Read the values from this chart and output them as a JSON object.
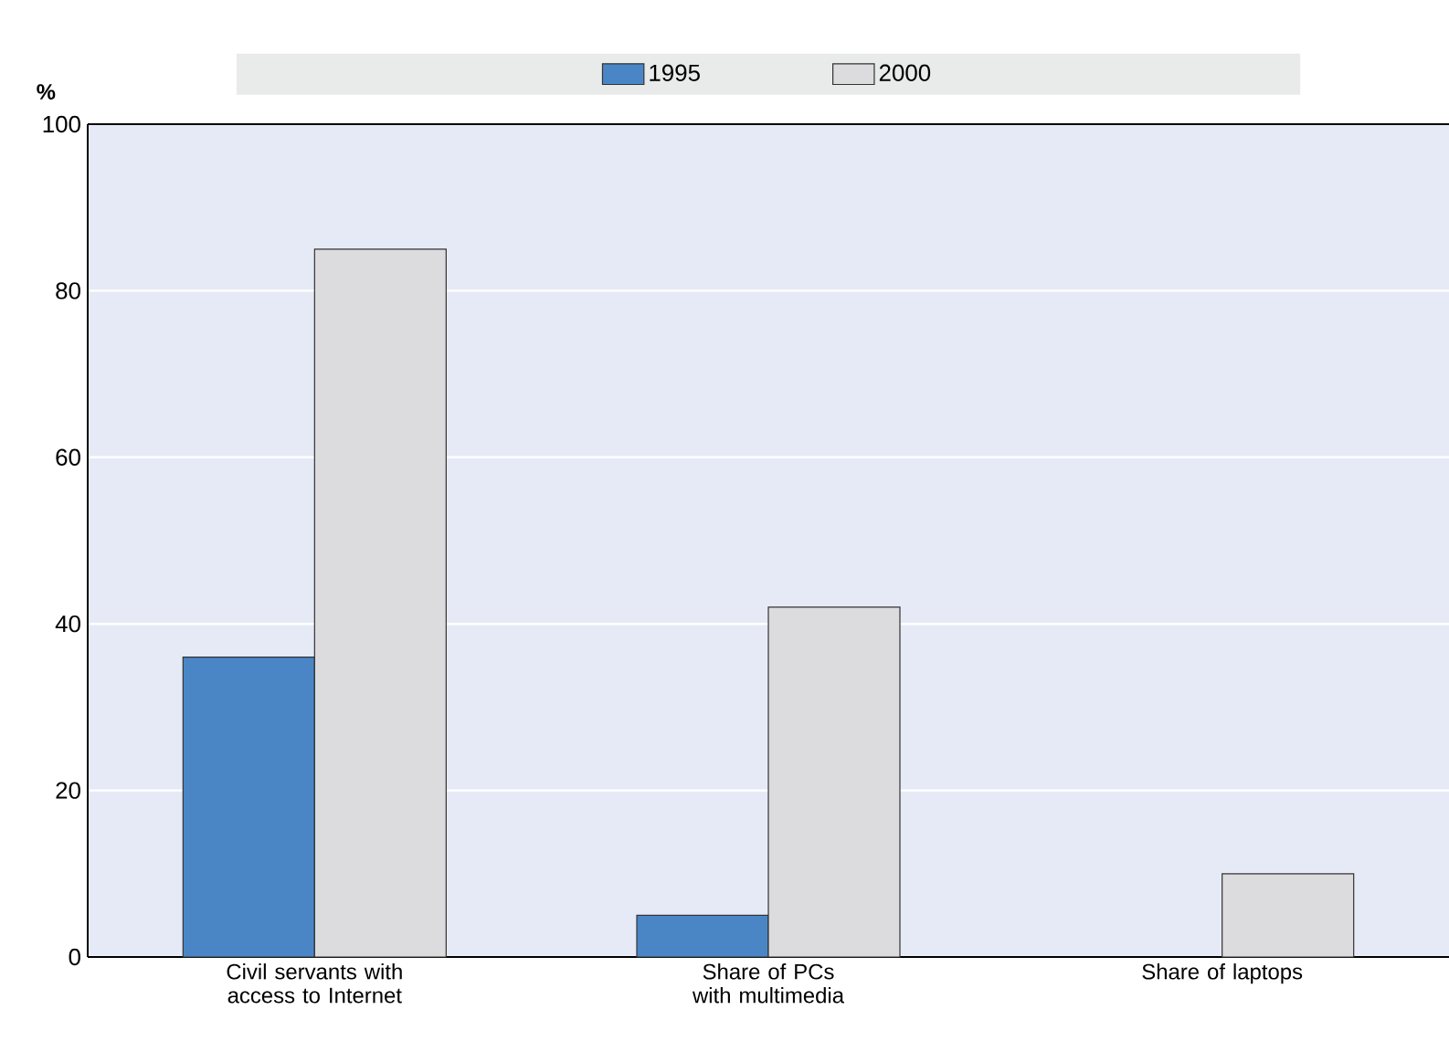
{
  "chart_data": {
    "type": "bar",
    "ylabel": "%",
    "categories": [
      "Civil servants with access to Internet",
      "Share of PCs with multimedia",
      "Share of laptops"
    ],
    "series": [
      {
        "name": "1995",
        "color": "#4a86c6",
        "values": [
          36,
          5,
          null
        ]
      },
      {
        "name": "2000",
        "color": "#dcdcde",
        "values": [
          85,
          42,
          10
        ]
      }
    ],
    "ylim": [
      0,
      100
    ],
    "yticks": [
      0,
      20,
      40,
      60,
      80,
      100
    ],
    "grid": "y",
    "legend": "top"
  }
}
